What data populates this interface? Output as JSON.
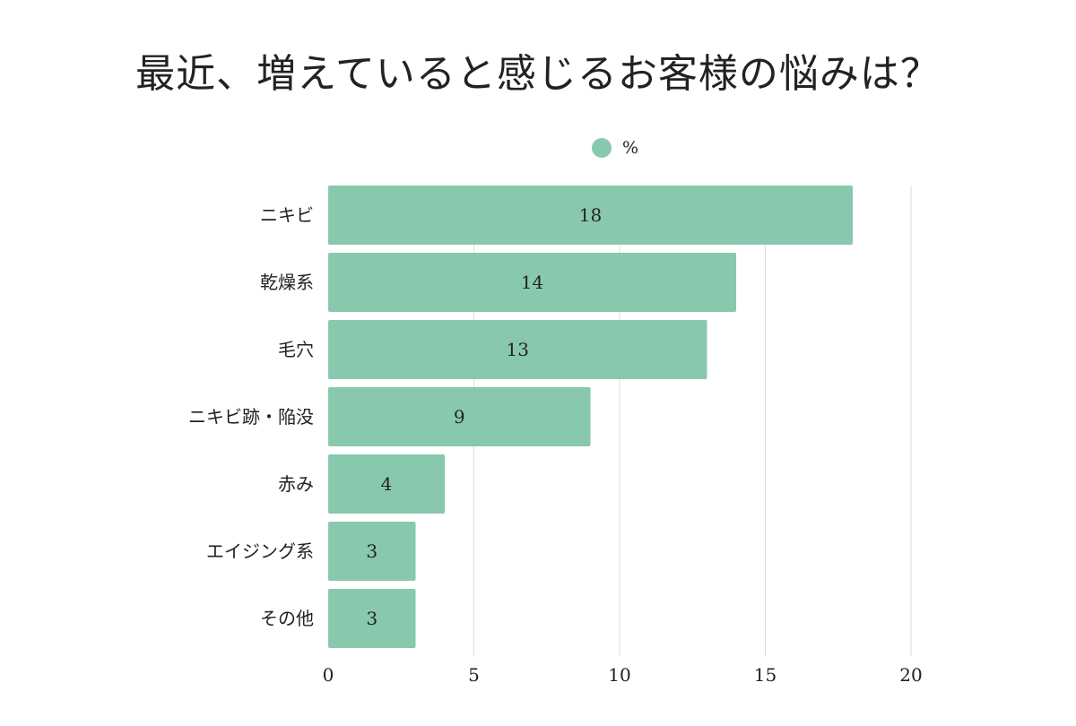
{
  "chart_data": {
    "type": "bar",
    "orientation": "horizontal",
    "title": "最近、増えていると感じるお客様の悩みは？",
    "legend": {
      "label": "%",
      "position": "top"
    },
    "categories": [
      "ニキビ",
      "乾燥系",
      "毛穴",
      "ニキビ跡・陥没",
      "赤み",
      "エイジング系",
      "その他"
    ],
    "series": [
      {
        "name": "%",
        "values": [
          18,
          14,
          13,
          9,
          4,
          3,
          3
        ]
      }
    ],
    "xlim": [
      0,
      20
    ],
    "xticks": [
      "0",
      "5",
      "10",
      "15",
      "20"
    ],
    "grid": true,
    "bar_color": "#88c9ae",
    "grid_color": "#dddddd"
  }
}
